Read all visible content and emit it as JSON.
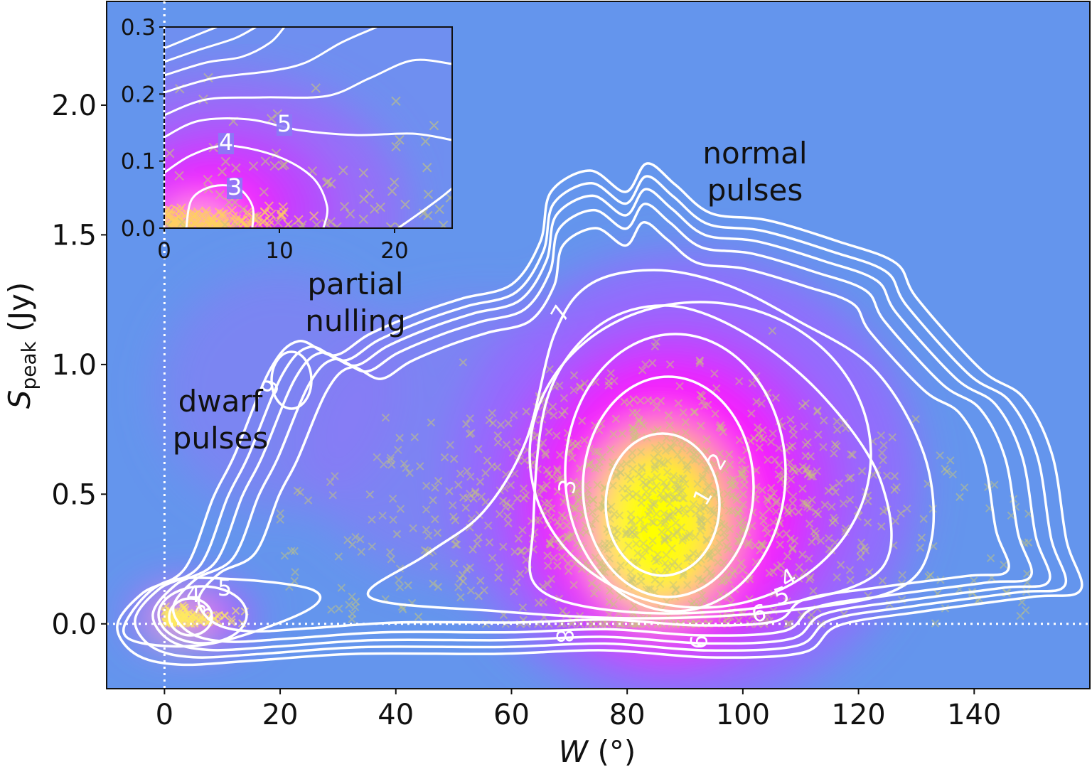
{
  "chart_data": {
    "type": "heatmap",
    "subtype": "kernel-density map with contours and scatter points",
    "xlabel": "W (°)",
    "xlabel_var": "W",
    "xlabel_unit": "(°)",
    "ylabel_var": "S",
    "ylabel_sub": "peak",
    "ylabel_unit": "(Jy)",
    "xlim": [
      -10,
      160
    ],
    "ylim": [
      -0.25,
      2.4
    ],
    "xticks": [
      "0",
      "20",
      "40",
      "60",
      "80",
      "100",
      "120",
      "140"
    ],
    "xtick_values": [
      0,
      20,
      40,
      60,
      80,
      100,
      120,
      140
    ],
    "yticks": [
      "0.0",
      "0.5",
      "1.0",
      "1.5",
      "2.0"
    ],
    "ytick_values": [
      0.0,
      0.5,
      1.0,
      1.5,
      2.0
    ],
    "reference_lines": {
      "x": 0,
      "y": 0,
      "style": "dotted white"
    },
    "density_peaks": [
      {
        "name": "normal pulses",
        "x": 85,
        "y": 0.4
      },
      {
        "name": "dwarf pulses",
        "x": 4,
        "y": 0.02
      }
    ],
    "contour_levels": [
      "1",
      "2",
      "3",
      "4",
      "5",
      "6",
      "7",
      "8",
      "9"
    ],
    "annotations": {
      "normal": [
        "normal",
        "pulses"
      ],
      "partial": [
        "partial",
        "nulling"
      ],
      "dwarf": [
        "dwarf",
        "pulses"
      ]
    },
    "colors": {
      "background": "#6495ED",
      "low": "#9966ff",
      "mid": "#ff00ff",
      "high": "#ffff00",
      "contour": "#ffffff",
      "marker": "#c8c87a"
    },
    "inset": {
      "xlim": [
        0,
        25
      ],
      "ylim": [
        0,
        0.3
      ],
      "xticks": [
        "0",
        "10",
        "20"
      ],
      "xtick_values": [
        0,
        10,
        20
      ],
      "yticks": [
        "0.0",
        "0.1",
        "0.2",
        "0.3"
      ],
      "ytick_values": [
        0.0,
        0.1,
        0.2,
        0.3
      ],
      "contour_labels": [
        "3",
        "4",
        "5"
      ]
    }
  }
}
